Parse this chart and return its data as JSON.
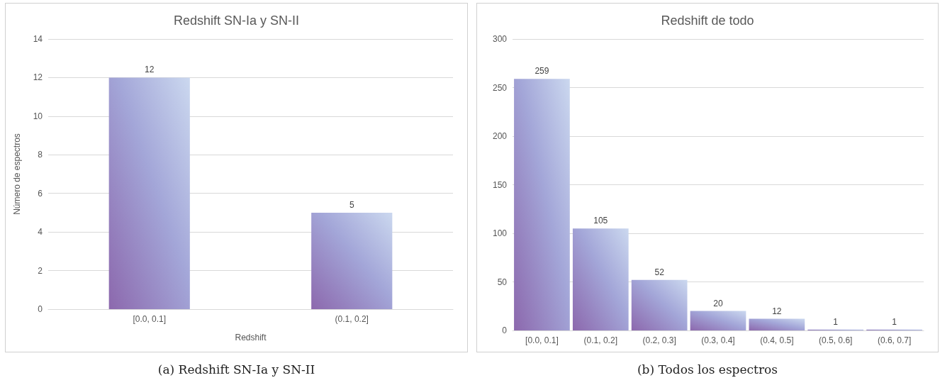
{
  "chart_data": [
    {
      "type": "bar",
      "title": "Redshift SN-Ia y SN-II",
      "xlabel": "Redshift",
      "ylabel": "Número de espectros",
      "categories": [
        "[0.0, 0.1]",
        "(0.1, 0.2]"
      ],
      "values": [
        12,
        5
      ],
      "color": "#a3a6d8",
      "ylim": [
        0,
        14
      ],
      "yticks": [
        0,
        2,
        4,
        6,
        8,
        10,
        12,
        14
      ],
      "grid": "y",
      "data_labels": true,
      "annotations": [
        "(a) Redshift SN-Ia y SN-II"
      ]
    },
    {
      "type": "bar",
      "title": "Redshift de todo",
      "categories": [
        "[0.0, 0.1]",
        "(0.1, 0.2]",
        "(0.2, 0.3]",
        "(0.3, 0.4]",
        "(0.4, 0.5]",
        "(0.5, 0.6]",
        "(0.6, 0.7]"
      ],
      "values": [
        259,
        105,
        52,
        20,
        12,
        1,
        1
      ],
      "color": "#a3a6d8",
      "ylim": [
        0,
        300
      ],
      "yticks": [
        0,
        50,
        100,
        150,
        200,
        250,
        300
      ],
      "grid": "y",
      "data_labels": true,
      "annotations": [
        "(b) Todos los espectros"
      ]
    }
  ]
}
